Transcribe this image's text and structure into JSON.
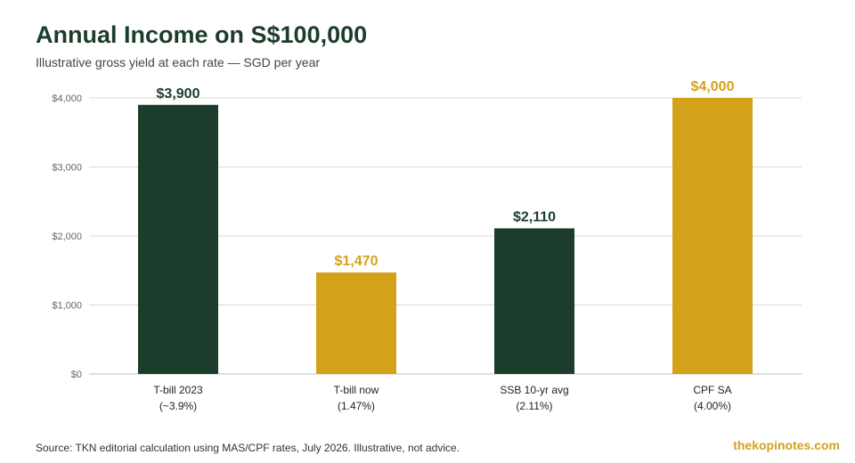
{
  "header": {
    "title": "Annual Income on S$100,000",
    "subtitle": "Illustrative gross yield at each rate — SGD per year"
  },
  "footer": {
    "source": "Source: TKN editorial calculation using MAS/CPF rates, July 2026. Illustrative, not advice.",
    "brand": "thekopinotes.com"
  },
  "colors": {
    "dark_green": "#1c3d2b",
    "gold": "#d4a21a",
    "grid": "#d9d9d9",
    "axis_text": "#666666"
  },
  "chart_data": {
    "type": "bar",
    "categories": [
      [
        "T-bill 2023",
        "(~3.9%)"
      ],
      [
        "T-bill now",
        "(1.47%)"
      ],
      [
        "SSB 10-yr avg",
        "(2.11%)"
      ],
      [
        "CPF SA",
        "(4.00%)"
      ]
    ],
    "values": [
      3900,
      1470,
      2110,
      4000
    ],
    "data_labels": [
      "$3,900",
      "$1,470",
      "$2,110",
      "$4,000"
    ],
    "bar_colors": [
      "#1c3d2b",
      "#d4a21a",
      "#1c3d2b",
      "#d4a21a"
    ],
    "ylim": [
      0,
      4000
    ],
    "yticks": [
      0,
      1000,
      2000,
      3000,
      4000
    ],
    "ytick_labels": [
      "$0",
      "$1,000",
      "$2,000",
      "$3,000",
      "$4,000"
    ],
    "grid": true
  }
}
